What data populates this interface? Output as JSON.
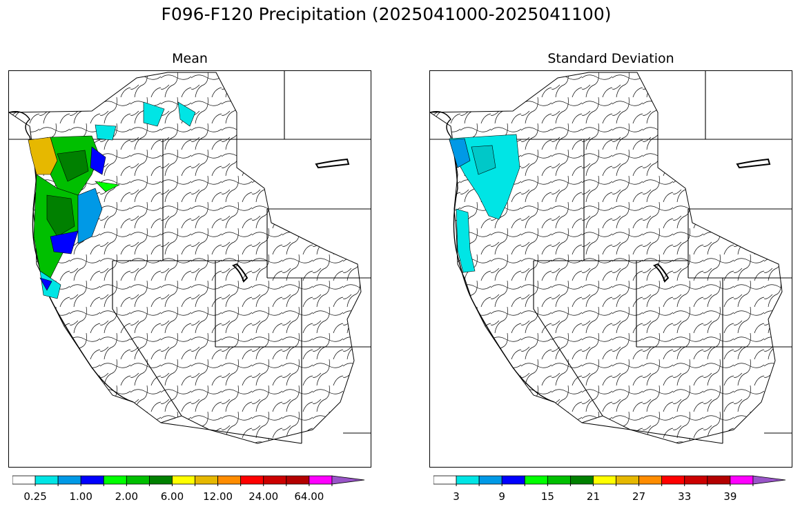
{
  "title": "F096-F120 Precipitation (2025041000-2025041100)",
  "panels": [
    {
      "id": "mean",
      "title": "Mean",
      "colorbar": {
        "colors": [
          "#ffffff",
          "#00e5e5",
          "#0099e6",
          "#0000ff",
          "#00ff00",
          "#00bf00",
          "#008000",
          "#ffff00",
          "#e6b800",
          "#ff8c00",
          "#ff0000",
          "#cc0000",
          "#b30000",
          "#ff00ff",
          "#9955c8"
        ],
        "tick_labels": [
          "0.25",
          "1.00",
          "2.00",
          "6.00",
          "12.00",
          "24.00",
          "64.00"
        ],
        "extend": "max"
      }
    },
    {
      "id": "sd",
      "title": "Standard Deviation",
      "colorbar": {
        "colors": [
          "#ffffff",
          "#00e5e5",
          "#0099e6",
          "#0000ff",
          "#00ff00",
          "#00bf00",
          "#008000",
          "#ffff00",
          "#e6b800",
          "#ff8c00",
          "#ff0000",
          "#cc0000",
          "#b30000",
          "#ff00ff",
          "#9955c8"
        ],
        "tick_labels": [
          "3",
          "9",
          "15",
          "21",
          "27",
          "33",
          "39"
        ],
        "extend": "max"
      }
    }
  ]
}
